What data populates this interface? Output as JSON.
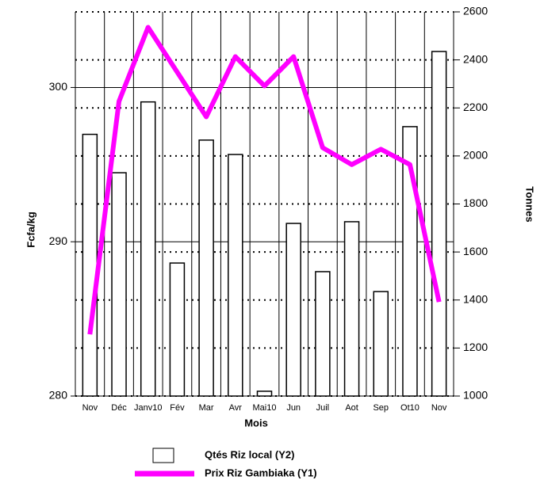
{
  "chart_data": {
    "type": "bar",
    "categories": [
      "Nov",
      "Déc",
      "Janv10",
      "Fév",
      "Mar",
      "Avr",
      "Mai10",
      "Jun",
      "Juil",
      "Aot",
      "Sep",
      "Ot10",
      "Nov"
    ],
    "series": [
      {
        "name": "Qtés Riz local (Y2)",
        "type": "bar",
        "axis": "y2",
        "color": "#ffffff",
        "values": [
          2090,
          1930,
          2225,
          1554,
          2066,
          2006,
          1020,
          1719,
          1518,
          1726,
          1435,
          2122,
          2435
        ]
      },
      {
        "name": "Prix Riz Gambiaka (Y1)",
        "type": "line",
        "axis": "y",
        "color": "#ff00ff",
        "values": [
          284.0,
          299.1,
          303.9,
          301.0,
          298.1,
          302.0,
          300.1,
          302.0,
          296.1,
          295.0,
          296.0,
          295.0,
          286.1
        ]
      }
    ],
    "xlabel": "Mois",
    "ylabel": "Fcfa/kg",
    "y2label": "Tonnes",
    "ylim": [
      280,
      304.9
    ],
    "yticks": [
      280,
      290,
      300
    ],
    "y2lim": [
      1000,
      2600
    ],
    "y2ticks": [
      1000,
      1200,
      1400,
      1600,
      1800,
      2000,
      2200,
      2400,
      2600
    ],
    "grid": true
  }
}
